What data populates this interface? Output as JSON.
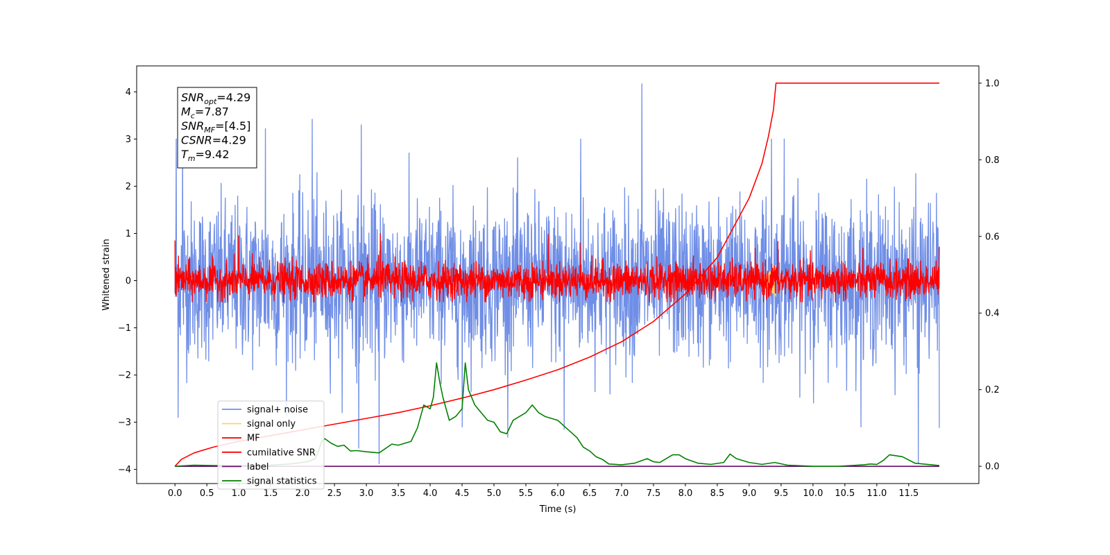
{
  "chart_data": {
    "type": "line",
    "title": "",
    "xlabel": "Time (s)",
    "ylabel": "Whitened strain",
    "y2label": "",
    "xlim": [
      -0.6,
      12.6
    ],
    "ylim": [
      -4.3,
      4.55
    ],
    "y2lim": [
      -0.045,
      1.045
    ],
    "xticks": [
      0.0,
      0.5,
      1.0,
      1.5,
      2.0,
      2.5,
      3.0,
      3.5,
      4.0,
      4.5,
      5.0,
      5.5,
      6.0,
      6.5,
      7.0,
      7.5,
      8.0,
      8.5,
      9.0,
      9.5,
      10.0,
      10.5,
      11.0,
      11.5
    ],
    "xtick_labels": [
      "0.0",
      "0.5",
      "1.0",
      "1.5",
      "2.0",
      "2.5",
      "3.0",
      "3.5",
      "4.0",
      "4.5",
      "5.0",
      "5.5",
      "6.0",
      "6.5",
      "7.0",
      "7.5",
      "8.0",
      "8.5",
      "9.0",
      "9.5",
      "10.0",
      "10.5",
      "11.0",
      "11.5"
    ],
    "yticks": [
      -4,
      -3,
      -2,
      -1,
      0,
      1,
      2,
      3,
      4
    ],
    "ytick_labels": [
      "−4",
      "−3",
      "−2",
      "−1",
      "0",
      "1",
      "2",
      "3",
      "4"
    ],
    "y2ticks": [
      0.0,
      0.2,
      0.4,
      0.6,
      0.8,
      1.0
    ],
    "y2tick_labels": [
      "0.0",
      "0.2",
      "0.4",
      "0.6",
      "0.8",
      "1.0"
    ],
    "grid": false,
    "legend_position": "bottom-left",
    "series": [
      {
        "name": "signal+ noise",
        "color": "#6f8ee6",
        "axis": "left",
        "style": "dense-noise",
        "x_range": [
          0.0,
          11.98
        ],
        "envelope": {
          "typical_amplitude": 1.5,
          "max": 4.17,
          "min": -3.88
        },
        "spikes": [
          {
            "x": 0.02,
            "y": 3.0
          },
          {
            "x": 0.05,
            "y": -2.9
          },
          {
            "x": 0.12,
            "y": 3.1
          },
          {
            "x": 1.42,
            "y": 3.22
          },
          {
            "x": 2.15,
            "y": 3.42
          },
          {
            "x": 2.92,
            "y": 3.3
          },
          {
            "x": 3.2,
            "y": -3.88
          },
          {
            "x": 2.88,
            "y": -3.55
          },
          {
            "x": 7.32,
            "y": 4.17
          },
          {
            "x": 6.36,
            "y": 3.0
          },
          {
            "x": 9.35,
            "y": 3.0
          },
          {
            "x": 9.55,
            "y": 3.0
          },
          {
            "x": 11.65,
            "y": -3.88
          },
          {
            "x": 11.98,
            "y": -3.12
          },
          {
            "x": 4.5,
            "y": -3.1
          },
          {
            "x": 6.1,
            "y": -3.15
          }
        ]
      },
      {
        "name": "signal only",
        "color": "#ffd070",
        "axis": "left",
        "style": "chirp",
        "x_range": [
          9.2,
          9.42
        ],
        "amplitude": 0.35
      },
      {
        "name": "MF",
        "color": "#ff0000",
        "axis": "left",
        "style": "dense-noise",
        "x_range": [
          0.0,
          11.98
        ],
        "envelope": {
          "typical_amplitude": 0.35,
          "max": 1.02,
          "min": -0.45
        },
        "spikes": [
          {
            "x": 0.0,
            "y": 0.85
          },
          {
            "x": 1.0,
            "y": 0.95
          },
          {
            "x": 3.22,
            "y": 1.0
          },
          {
            "x": 5.85,
            "y": 0.98
          },
          {
            "x": 6.35,
            "y": 0.8
          },
          {
            "x": 9.45,
            "y": 0.83
          },
          {
            "x": 11.98,
            "y": 0.72
          }
        ]
      },
      {
        "name": "cumilative SNR",
        "color": "#ff0000",
        "axis": "right",
        "style": "line",
        "x": [
          0.0,
          0.1,
          0.3,
          0.6,
          1.0,
          1.5,
          2.0,
          2.5,
          3.0,
          3.5,
          4.0,
          4.5,
          5.0,
          5.5,
          6.0,
          6.5,
          7.0,
          7.5,
          8.0,
          8.5,
          9.0,
          9.2,
          9.3,
          9.38,
          9.42,
          11.98
        ],
        "y": [
          0.0,
          0.018,
          0.035,
          0.05,
          0.065,
          0.08,
          0.095,
          0.11,
          0.125,
          0.14,
          0.158,
          0.178,
          0.2,
          0.225,
          0.252,
          0.285,
          0.325,
          0.378,
          0.45,
          0.545,
          0.7,
          0.79,
          0.86,
          0.93,
          1.0,
          1.0
        ]
      },
      {
        "name": "label",
        "color": "#6a0a6a",
        "axis": "right",
        "style": "line",
        "x": [
          0.0,
          11.98
        ],
        "y": [
          0.0,
          0.0
        ]
      },
      {
        "name": "signal statistics",
        "color": "#008000",
        "axis": "right",
        "style": "line",
        "x": [
          0.0,
          0.3,
          0.6,
          1.0,
          1.5,
          1.8,
          2.0,
          2.1,
          2.2,
          2.25,
          2.3,
          2.35,
          2.45,
          2.55,
          2.65,
          2.75,
          2.85,
          3.0,
          3.2,
          3.4,
          3.5,
          3.6,
          3.7,
          3.8,
          3.9,
          4.0,
          4.05,
          4.1,
          4.15,
          4.2,
          4.3,
          4.4,
          4.5,
          4.55,
          4.6,
          4.7,
          4.8,
          4.9,
          5.0,
          5.1,
          5.2,
          5.3,
          5.4,
          5.5,
          5.6,
          5.7,
          5.8,
          5.9,
          6.0,
          6.1,
          6.2,
          6.3,
          6.4,
          6.5,
          6.6,
          6.7,
          6.8,
          7.0,
          7.2,
          7.4,
          7.5,
          7.6,
          7.8,
          7.9,
          8.0,
          8.2,
          8.4,
          8.6,
          8.7,
          8.8,
          9.0,
          9.2,
          9.4,
          9.6,
          10.0,
          10.4,
          10.8,
          10.9,
          11.0,
          11.1,
          11.2,
          11.4,
          11.6,
          11.98
        ],
        "y": [
          0.0,
          0.003,
          0.002,
          0.002,
          0.003,
          0.006,
          0.01,
          0.013,
          0.02,
          0.04,
          0.065,
          0.072,
          0.06,
          0.052,
          0.055,
          0.04,
          0.041,
          0.038,
          0.035,
          0.058,
          0.055,
          0.06,
          0.065,
          0.1,
          0.16,
          0.15,
          0.18,
          0.27,
          0.22,
          0.18,
          0.12,
          0.13,
          0.15,
          0.27,
          0.2,
          0.16,
          0.14,
          0.12,
          0.115,
          0.09,
          0.085,
          0.12,
          0.13,
          0.14,
          0.16,
          0.14,
          0.13,
          0.125,
          0.12,
          0.105,
          0.09,
          0.075,
          0.05,
          0.04,
          0.025,
          0.018,
          0.006,
          0.004,
          0.008,
          0.02,
          0.012,
          0.01,
          0.03,
          0.03,
          0.02,
          0.008,
          0.005,
          0.01,
          0.032,
          0.02,
          0.01,
          0.005,
          0.01,
          0.003,
          0.0,
          0.0,
          0.004,
          0.006,
          0.005,
          0.015,
          0.03,
          0.025,
          0.008,
          0.002
        ]
      }
    ],
    "annotations": [
      {
        "var": "SNR",
        "sub": "opt",
        "value": "=4.29"
      },
      {
        "var": "M",
        "sub": "c",
        "value": "=7.87"
      },
      {
        "var": "SNR",
        "sub": "MF",
        "value": "=[4.5]"
      },
      {
        "var": "CSNR",
        "sub": "",
        "value": "=4.29"
      },
      {
        "var": "T",
        "sub": "m",
        "value": "=9.42"
      }
    ]
  }
}
